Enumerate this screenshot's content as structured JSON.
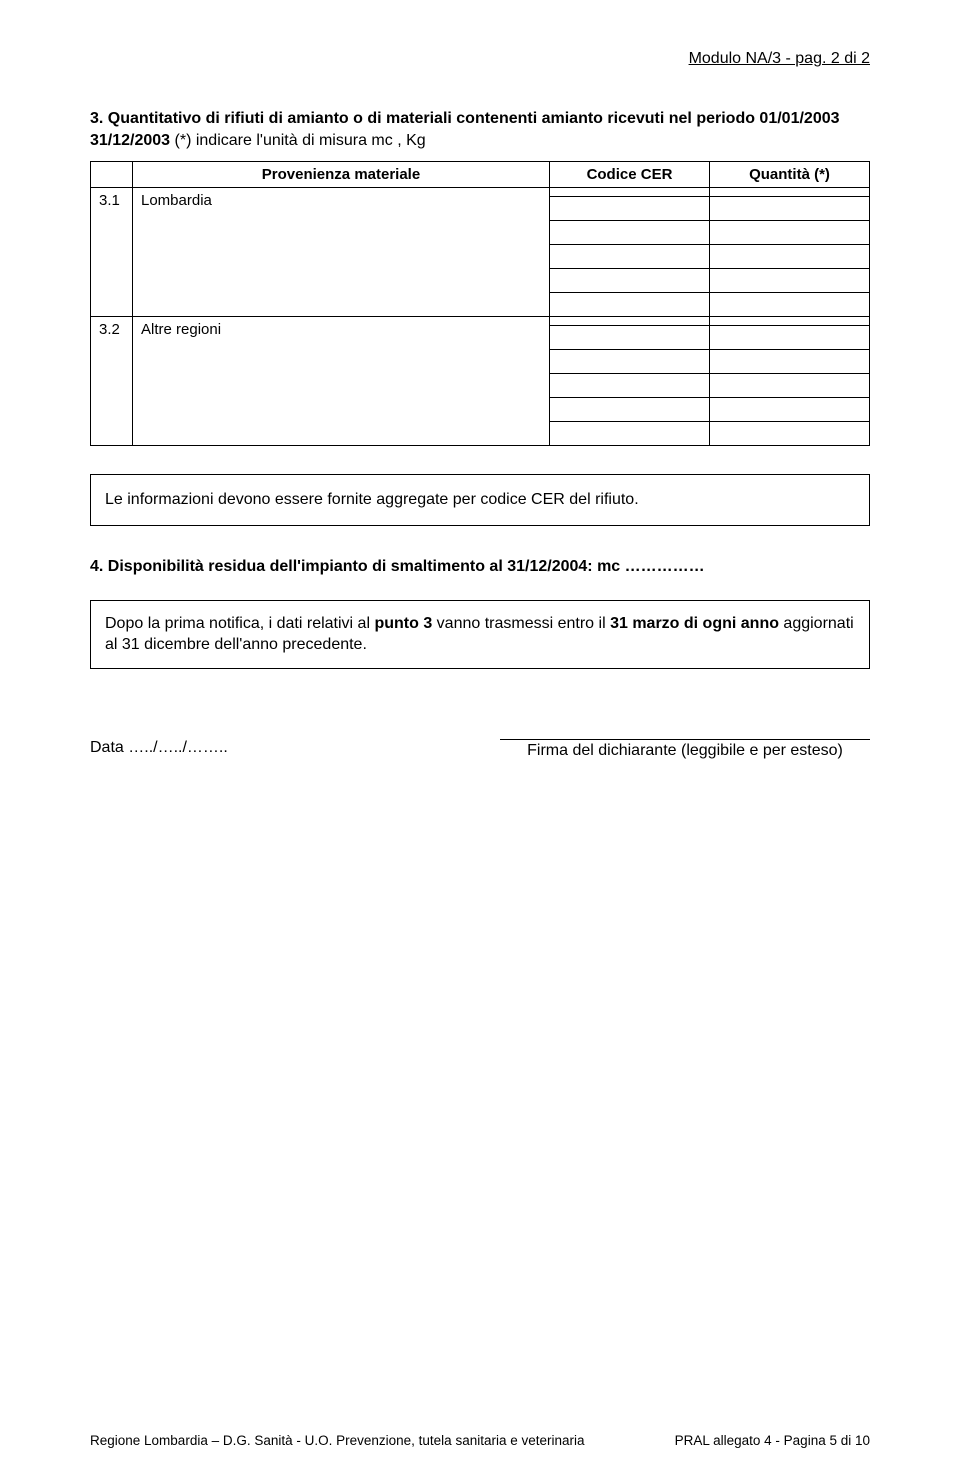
{
  "header": {
    "module": "Modulo NA/3 - pag. 2 di 2"
  },
  "section3": {
    "number": "3.",
    "title_bold": "Quantitativo di rifiuti di amianto o di materiali contenenti amianto ricevuti nel periodo 01/01/2003 31/12/2003",
    "title_rest": " (*) indicare l'unità di misura mc , Kg",
    "columns": {
      "prov": "Provenienza materiale",
      "cer": "Codice CER",
      "qty": "Quantità (*)"
    },
    "rows": {
      "r1": {
        "idx": "3.1",
        "label": "Lombardia"
      },
      "r2": {
        "idx": "3.2",
        "label": "Altre regioni"
      }
    }
  },
  "note": "Le informazioni devono essere fornite aggregate per codice CER del rifiuto.",
  "section4": {
    "number": "4.",
    "text": "Disponibilità residua dell'impianto di smaltimento  al 31/12/2004: mc ……………"
  },
  "afterbox": {
    "pre": "Dopo la prima notifica, i dati relativi al ",
    "b1": "punto 3",
    "mid": " vanno trasmessi entro il ",
    "b2": "31 marzo di ogni anno",
    "post": " aggiornati al 31 dicembre dell'anno precedente."
  },
  "date_label": "Data …../…../……..",
  "sig_label": "Firma del dichiarante (leggibile e per esteso)",
  "footer": {
    "left": "Regione Lombardia – D.G. Sanità  -  U.O. Prevenzione, tutela sanitaria e veterinaria",
    "right": "PRAL allegato 4 - Pagina 5 di 10"
  }
}
